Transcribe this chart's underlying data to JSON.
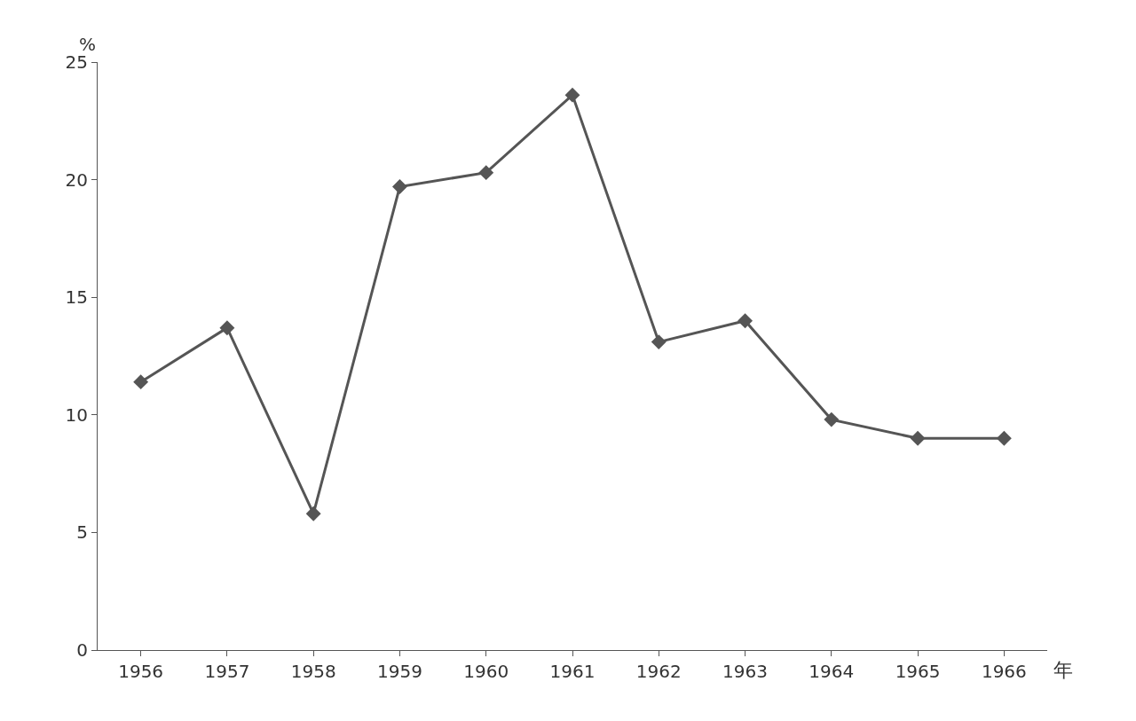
{
  "chart_data": {
    "type": "line",
    "xlabel": "年",
    "ylabel": "%",
    "categories": [
      "1956",
      "1957",
      "1958",
      "1959",
      "1960",
      "1961",
      "1962",
      "1963",
      "1964",
      "1965",
      "1966"
    ],
    "series": [
      {
        "color": "#555555",
        "values": [
          11.4,
          13.7,
          5.8,
          19.7,
          20.3,
          23.6,
          13.1,
          14.0,
          9.8,
          9.0,
          9.0
        ]
      }
    ],
    "ylim": [
      0,
      25
    ],
    "yticks": [
      0,
      5,
      10,
      15,
      20,
      25
    ],
    "marker": "diamond",
    "line_style": "solid"
  }
}
